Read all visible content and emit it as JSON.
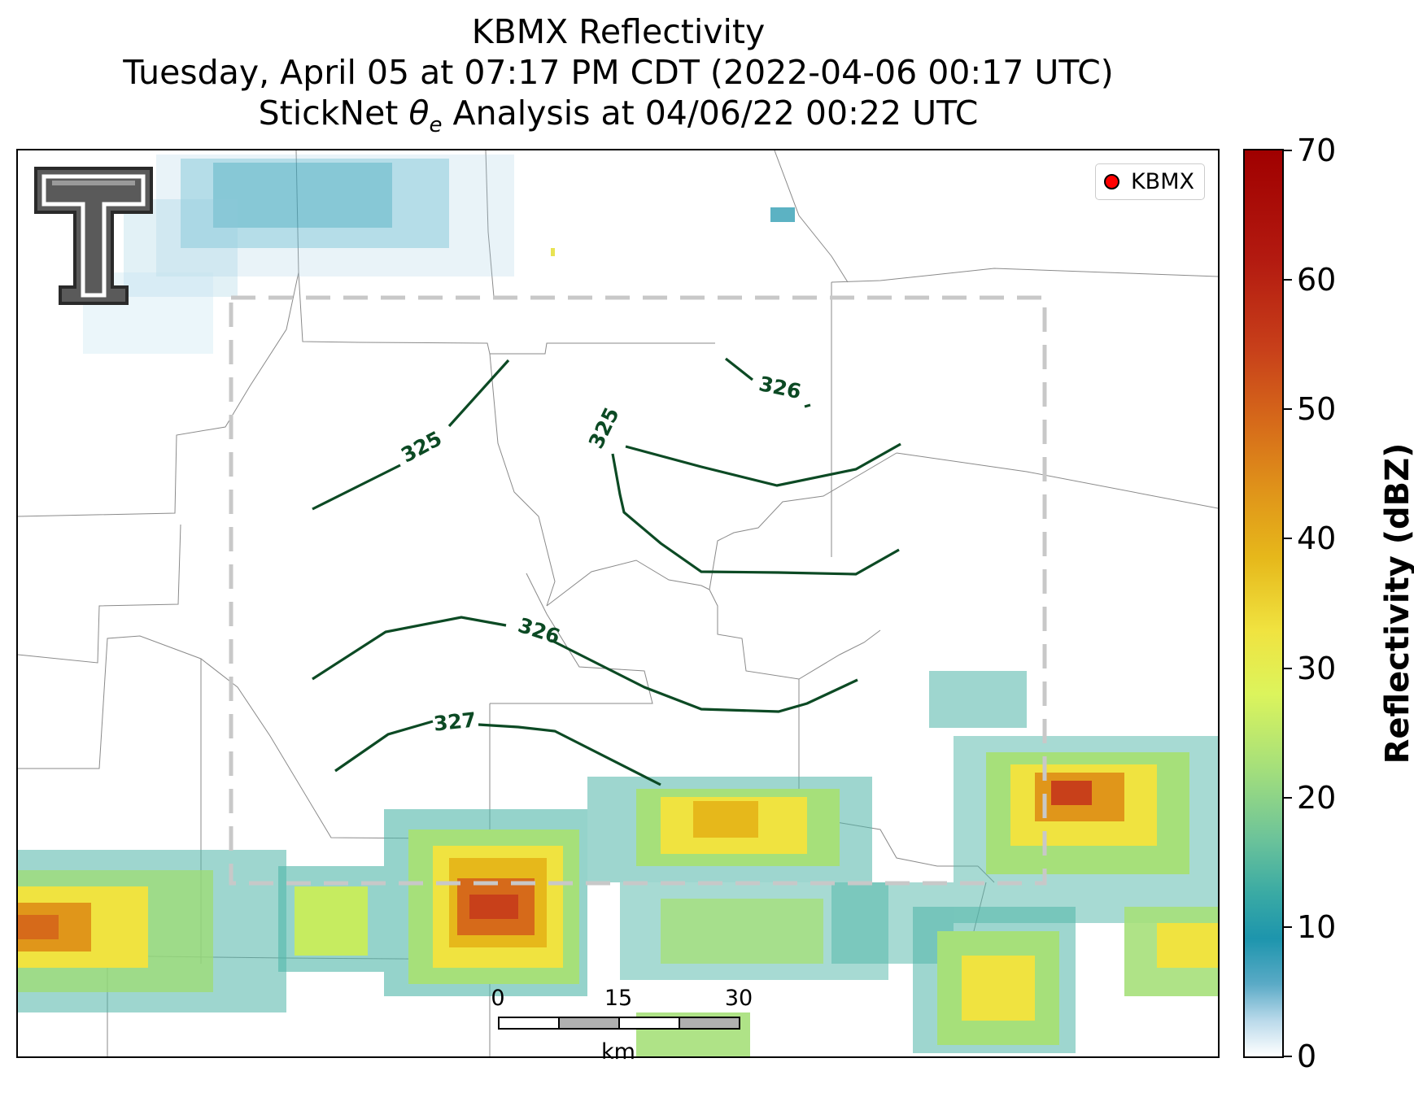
{
  "title": {
    "line1": "KBMX Reflectivity",
    "line2": "Tuesday, April 05 at 07:17 PM CDT (2022-04-06 00:17 UTC)",
    "line3_prefix": "StickNet ",
    "line3_symbol": "θ",
    "line3_subscript": "e",
    "line3_suffix": " Analysis at 04/06/22 00:22 UTC"
  },
  "legend": {
    "station_label": "KBMX",
    "marker_color": "#ff0000"
  },
  "colorbar": {
    "title": "Reflectivity (dBZ)",
    "range": [
      0,
      70
    ],
    "ticks": [
      "0",
      "10",
      "20",
      "30",
      "40",
      "50",
      "60",
      "70"
    ],
    "colors": [
      "#ffffff",
      "#1d95ad",
      "#a6e07a",
      "#f0e340",
      "#e6b81b",
      "#d66a1a",
      "#c8401a",
      "#a00000"
    ]
  },
  "contours": {
    "color": "#0c4a24",
    "labels": [
      "325",
      "325",
      "326",
      "326",
      "327"
    ]
  },
  "scalebar": {
    "ticks": [
      "0",
      "15",
      "30"
    ],
    "unit": "km"
  },
  "analysis_box_color": "#c8c8c8",
  "logo": {
    "name": "texas-tech-double-t-logo"
  }
}
